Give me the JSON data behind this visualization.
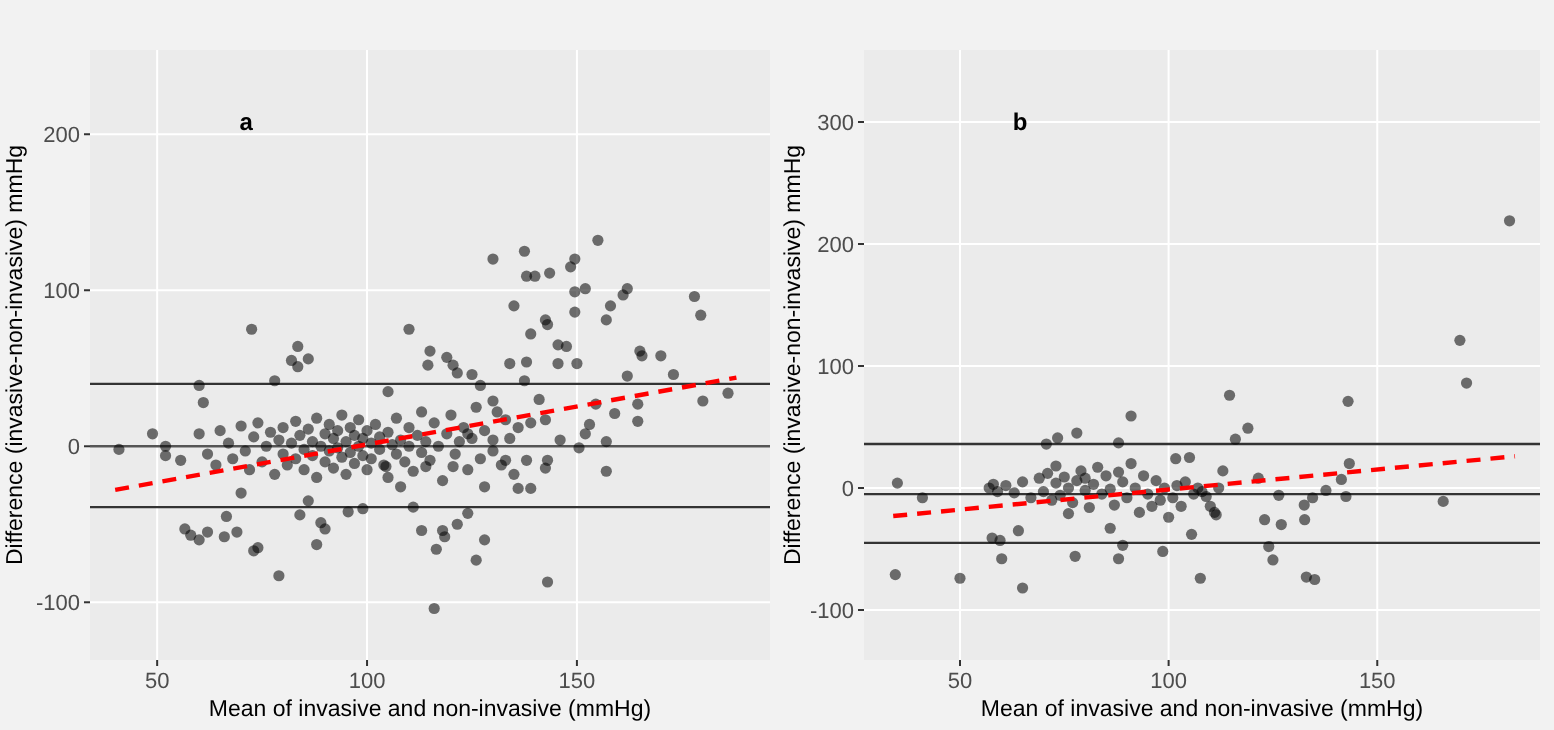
{
  "chart_data": [
    {
      "type": "scatter",
      "title": "a",
      "xlabel": "Mean of invasive and non-invasive (mmHg)",
      "ylabel": "Difference (invasive-non-invasive) mmHg",
      "xlim": [
        34,
        196
      ],
      "ylim": [
        -137,
        254
      ],
      "xticks": [
        50,
        100,
        150
      ],
      "yticks": [
        -100,
        0,
        100,
        200
      ],
      "grid": true,
      "marker": "circle",
      "ref_lines": [
        {
          "axis": "y",
          "value": 40,
          "color": "#333333"
        },
        {
          "axis": "y",
          "value": 0,
          "color": "#555555"
        },
        {
          "axis": "y",
          "value": -39,
          "color": "#333333"
        }
      ],
      "series": [
        {
          "color": "#000000",
          "x": [
            40.9,
            48.9,
            52,
            52,
            55.6,
            56.6,
            58,
            60,
            60,
            61,
            62,
            66,
            66.5,
            69,
            70,
            72.5,
            73,
            74,
            78,
            79,
            82,
            83.5,
            83.5,
            86,
            84,
            86,
            88,
            89,
            90,
            95.5,
            99,
            110,
            105,
            115,
            114.5,
            119,
            120.5,
            121.5,
            125,
            127,
            130,
            116,
            116.5,
            113,
            118,
            118.5,
            121.5,
            124,
            126,
            128,
            130,
            134,
            135,
            137.5,
            138,
            138,
            140,
            139,
            137.5,
            142.5,
            143,
            143.5,
            145.5,
            147.5,
            148.5,
            149.5,
            149.5,
            149.5,
            152,
            155,
            157,
            158,
            150,
            145.5,
            161,
            162,
            162,
            165,
            165.5,
            170,
            173,
            178,
            179.5,
            180,
            186,
            157,
            157,
            164.5,
            164.5,
            150.5,
            152,
            154.5,
            142.5,
            143,
            139,
            136,
            143,
            138,
            133,
            128,
            153,
            159,
            139,
            146,
            142.5,
            133,
            141,
            130,
            124,
            120.5,
            114,
            111,
            108,
            104.5,
            60,
            62,
            64,
            65,
            67,
            68,
            70,
            71,
            72,
            73,
            74,
            75,
            76,
            77,
            78,
            79,
            80,
            80,
            81,
            82,
            83,
            83,
            84,
            85,
            85,
            86,
            87,
            87,
            88,
            88,
            89,
            90,
            90,
            91,
            91,
            92,
            92,
            93,
            93,
            94,
            94,
            95,
            95,
            96,
            96,
            97,
            97,
            98,
            98,
            99,
            99,
            100,
            100,
            101,
            101,
            102,
            103,
            103,
            104,
            105,
            105,
            106,
            107,
            107,
            108,
            109,
            110,
            110,
            111,
            112,
            113,
            113,
            114,
            115,
            116,
            117,
            118,
            119,
            120,
            121,
            122,
            123,
            124,
            125,
            126,
            127,
            128,
            130,
            131,
            132,
            134,
            135,
            136
          ],
          "values": [
            -2,
            8,
            0,
            -6,
            -9,
            -53,
            -57,
            -60,
            39,
            28,
            -55,
            -58,
            -45,
            -55,
            -30,
            75,
            -67,
            -65,
            42,
            -83,
            55,
            64,
            51,
            56,
            -44,
            -35,
            -63,
            -49,
            -53,
            -42,
            -40,
            75,
            35,
            61,
            52,
            57,
            52,
            47,
            46,
            39,
            120,
            -104,
            -66,
            -54,
            -54,
            -58,
            -50,
            -43,
            -73,
            -60,
            29,
            53,
            90,
            125,
            54,
            109,
            109,
            72,
            42,
            81,
            78,
            111,
            65,
            64,
            115,
            120,
            99,
            86,
            101,
            132,
            81,
            90,
            53,
            53,
            97,
            101,
            45,
            61,
            58,
            58,
            46,
            96,
            84,
            29,
            34,
            -16,
            3,
            16,
            27,
            -1,
            8,
            27,
            -14,
            -9,
            -27,
            -27,
            -87,
            -9,
            -9,
            -26,
            14,
            21,
            15,
            4,
            17,
            17,
            30,
            4,
            8,
            -13,
            -13,
            -39,
            -26,
            -13,
            8,
            -5,
            -12,
            10,
            2,
            -8,
            13,
            -3,
            -15,
            6,
            15,
            -10,
            0,
            9,
            -18,
            4,
            12,
            -5,
            -12,
            2,
            16,
            -8,
            7,
            -2,
            -15,
            11,
            3,
            -6,
            18,
            -20,
            0,
            8,
            -10,
            14,
            -3,
            5,
            -14,
            -1,
            10,
            20,
            -7,
            3,
            -18,
            12,
            -4,
            7,
            -11,
            0,
            17,
            -6,
            5,
            10,
            -15,
            2,
            -8,
            14,
            -2,
            6,
            -12,
            9,
            -20,
            1,
            18,
            -5,
            4,
            -10,
            12,
            0,
            -16,
            7,
            22,
            -4,
            3,
            -9,
            15,
            0,
            -22,
            8,
            20,
            -5,
            3,
            12,
            -15,
            5,
            25,
            -8,
            10,
            -3,
            22,
            -12,
            5,
            -18,
            12
          ]
        },
        {
          "type": "line",
          "color": "#ff0000",
          "line_style": "dashed",
          "marker": "none",
          "x": [
            40,
            188
          ],
          "values": [
            -28,
            44
          ]
        }
      ]
    },
    {
      "type": "scatter",
      "title": "b",
      "xlabel": "Mean of invasive and non-invasive (mmHg)",
      "ylabel": "Difference (invasive-non-invasive) mmHg",
      "xlim": [
        27,
        189
      ],
      "ylim": [
        -141,
        359
      ],
      "xticks": [
        50,
        100,
        150
      ],
      "yticks": [
        -100,
        0,
        100,
        200,
        300
      ],
      "grid": true,
      "marker": "circle",
      "ref_lines": [
        {
          "axis": "y",
          "value": 36,
          "color": "#333333"
        },
        {
          "axis": "y",
          "value": -5,
          "color": "#333333"
        },
        {
          "axis": "y",
          "value": -45,
          "color": "#333333"
        }
      ],
      "series": [
        {
          "color": "#000000",
          "x": [
            34.5,
            35,
            41,
            50,
            57.7,
            59.6,
            60,
            64,
            65,
            70.7,
            73.4,
            78,
            77.6,
            76,
            88,
            91,
            86,
            88,
            89,
            98.6,
            101.7,
            105,
            105.5,
            107.6,
            111.4,
            114.6,
            116,
            119,
            121.5,
            123,
            124,
            125,
            127,
            126.4,
            132.5,
            132.6,
            133,
            135,
            137.7,
            141.4,
            142.5,
            143,
            143.3,
            165.8,
            169.8,
            171.4,
            181.7,
            134.5,
            57,
            58,
            59,
            61,
            63,
            65,
            67,
            69,
            70,
            71,
            72,
            73,
            73,
            74,
            75,
            76,
            77,
            78,
            79,
            80,
            80,
            81,
            82,
            83,
            84,
            85,
            86,
            87,
            88,
            89,
            90,
            91,
            92,
            93,
            94,
            95,
            96,
            97,
            98,
            99,
            100,
            101,
            102,
            103,
            104,
            106,
            107,
            108,
            109,
            110,
            111,
            112,
            113
          ],
          "values": [
            -71,
            4,
            -8,
            -74,
            -41,
            -43,
            -58,
            -35,
            -82,
            36,
            41,
            45,
            -56,
            -21,
            37,
            59,
            -33,
            -58,
            -47,
            -52,
            24,
            25,
            -38,
            -74,
            -22,
            76,
            40,
            49,
            8,
            -26,
            -48,
            -59,
            -30,
            -6,
            -14,
            -26,
            -73,
            -75,
            -2,
            7,
            -7,
            71,
            20,
            -11,
            121,
            86,
            219,
            -8,
            0,
            3,
            -3,
            2,
            -4,
            5,
            -8,
            8,
            -3,
            12,
            -10,
            18,
            4,
            -6,
            9,
            0,
            -12,
            6,
            14,
            -2,
            8,
            -16,
            3,
            17,
            -5,
            10,
            -1,
            -14,
            13,
            5,
            -8,
            20,
            0,
            -20,
            10,
            -5,
            -15,
            6,
            -10,
            0,
            -24,
            -8,
            2,
            -15,
            5,
            -5,
            0,
            -3,
            -7,
            -15,
            -20,
            0,
            14
          ]
        },
        {
          "type": "line",
          "color": "#ff0000",
          "line_style": "dashed",
          "marker": "none",
          "x": [
            34,
            183
          ],
          "values": [
            -23,
            26
          ]
        }
      ]
    }
  ]
}
